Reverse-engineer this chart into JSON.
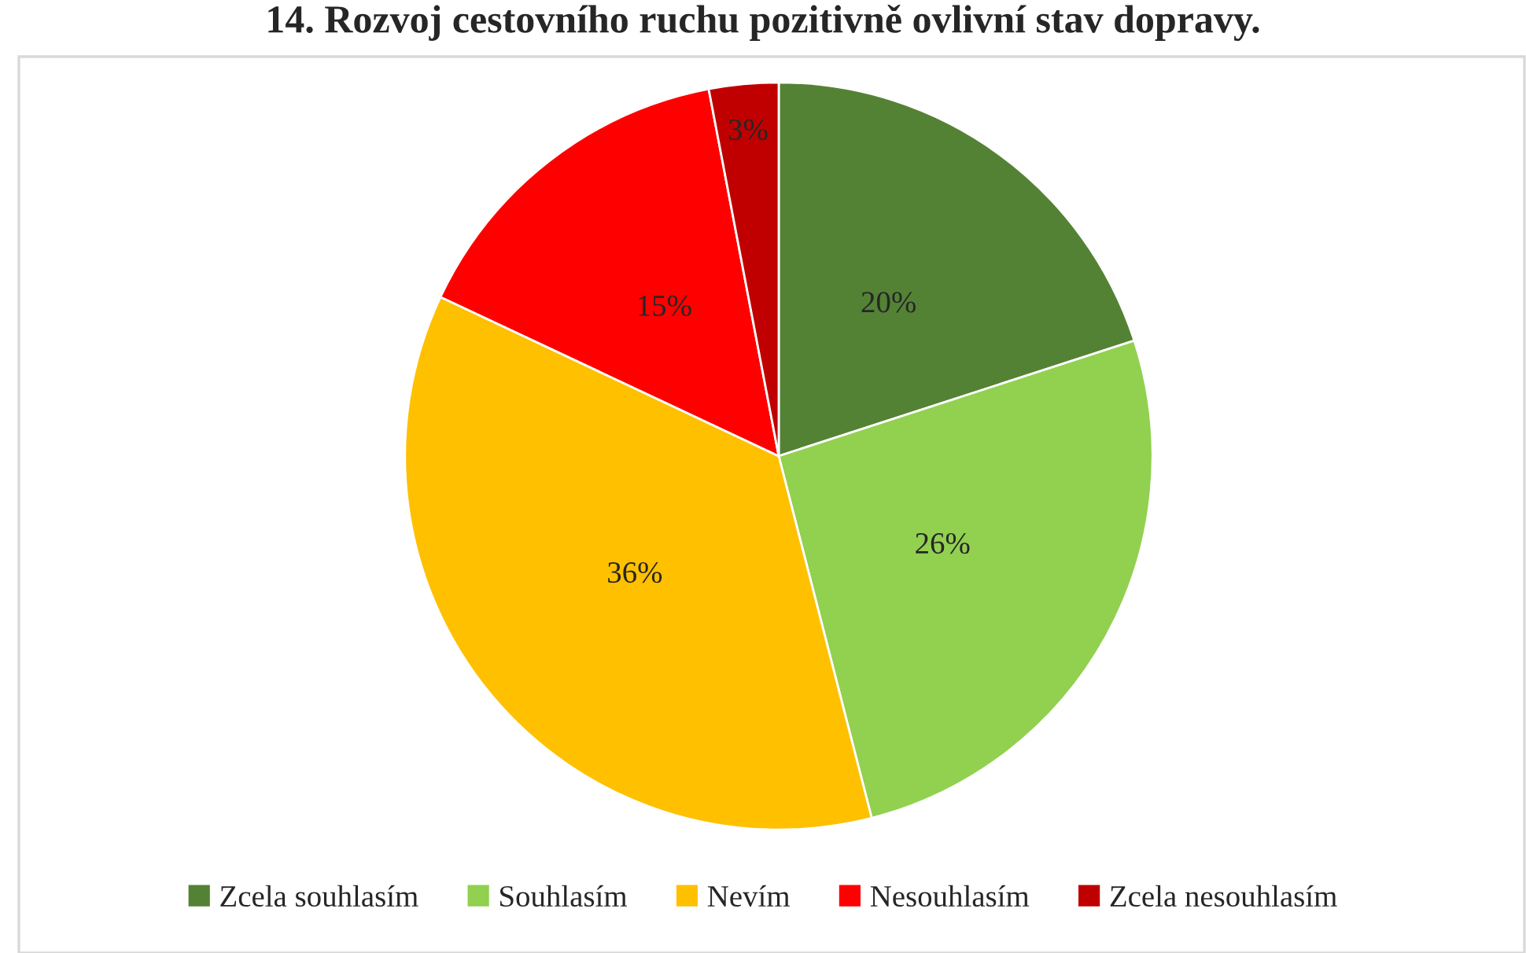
{
  "chart_data": {
    "type": "pie",
    "title": "14. Rozvoj cestovního ruchu pozitivně ovlivní stav dopravy.",
    "categories": [
      "Zcela souhlasím",
      "Souhlasím",
      "Nevím",
      "Nesouhlasím",
      "Zcela nesouhlasím"
    ],
    "values": [
      20,
      26,
      36,
      15,
      3
    ],
    "colors": [
      "#548235",
      "#92d050",
      "#ffc000",
      "#ff0000",
      "#c00000"
    ],
    "value_labels": [
      "20%",
      "26%",
      "36%",
      "15%",
      "3%"
    ],
    "legend": "bottom"
  }
}
